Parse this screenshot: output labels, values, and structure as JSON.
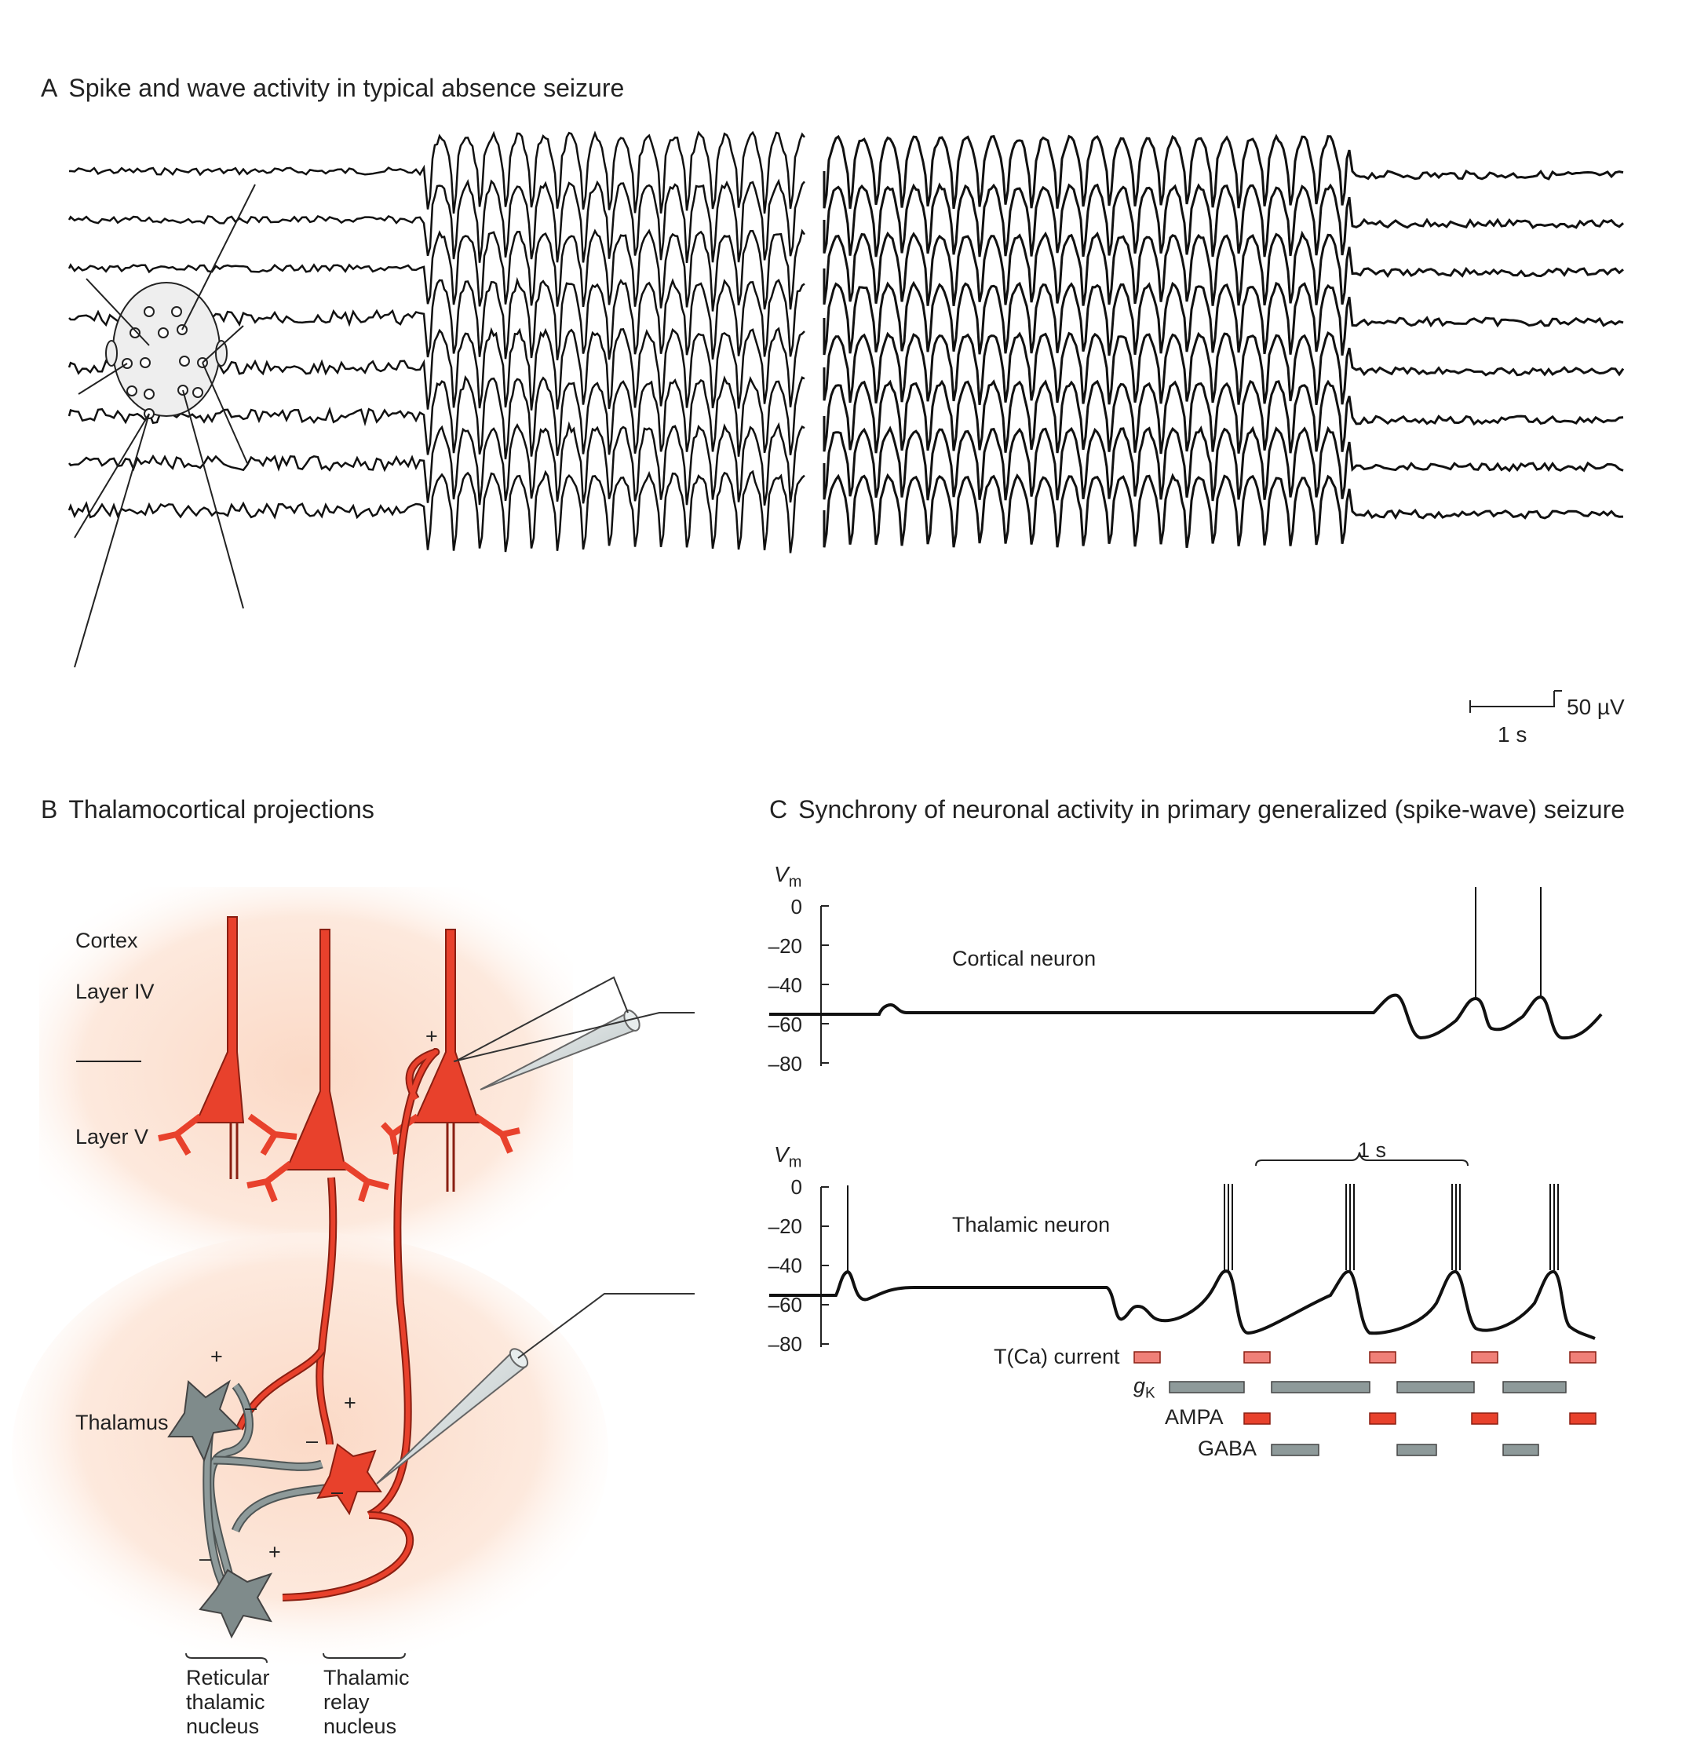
{
  "panel_a": {
    "letter": "A",
    "title": "Spike and wave activity in typical absence seizure",
    "scale_time": "1 s",
    "scale_voltage": "50 µV"
  },
  "panel_b": {
    "letter": "B",
    "title": "Thalamocortical projections",
    "cortex": "Cortex",
    "layer4": "Layer IV",
    "layer5": "Layer V",
    "thalamus": "Thalamus",
    "reticular": [
      "Reticular",
      "thalamic",
      "nucleus"
    ],
    "relay": [
      "Thalamic",
      "relay",
      "nucleus"
    ],
    "plus": "+",
    "minus": "–"
  },
  "panel_c": {
    "letter": "C",
    "title": "Synchrony of neuronal activity in primary generalized (spike-wave) seizure",
    "vm_main": "V",
    "vm_sub": "m",
    "yticks": [
      "0",
      "–20",
      "–40",
      "–60",
      "–80"
    ],
    "cortical_label": "Cortical neuron",
    "thalamic_label": "Thalamic neuron",
    "scale_time": "1 s",
    "currents": [
      {
        "label": "T(Ca) current",
        "color": "#f08078"
      },
      {
        "label_main": "g",
        "label_sub": "K",
        "color": "#8e9a9a"
      },
      {
        "label": "AMPA",
        "color": "#e8412c"
      },
      {
        "label": "GABA",
        "color": "#8e9a9a"
      }
    ]
  }
}
